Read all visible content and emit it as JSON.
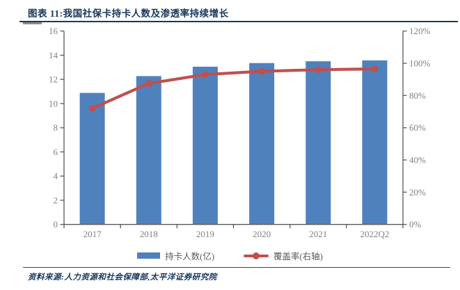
{
  "header": {
    "title": "图表 11:我国社保卡持卡人数及渗透率持续增长"
  },
  "footer": {
    "source": "资料来源:人力资源和社会保障部,太平洋证券研究院"
  },
  "colors": {
    "bar": "#4F81BD",
    "line": "#C0504D",
    "title_text": "#17375E",
    "axis": "#595959",
    "tick_label": "#808080"
  },
  "chart_data": {
    "type": "bar",
    "subtype": "bar+line dual axis",
    "categories": [
      "2017",
      "2018",
      "2019",
      "2020",
      "2021",
      "2022Q2"
    ],
    "series": [
      {
        "name": "持卡人数(亿)",
        "type": "bar",
        "axis": "left",
        "values": [
          10.88,
          12.27,
          13.05,
          13.35,
          13.5,
          13.57
        ]
      },
      {
        "name": "覆盖率(右轴)",
        "type": "line",
        "axis": "right",
        "values": [
          72,
          87.5,
          93,
          95,
          96,
          96.5
        ]
      }
    ],
    "title": "我国社保卡持卡人数及渗透率持续增长",
    "xlabel": "",
    "ylabel_left": "持卡人数(亿)",
    "ylabel_right": "覆盖率",
    "left_axis": {
      "min": 0,
      "max": 16,
      "tick_step": 2,
      "tick_labels": [
        "0",
        "2",
        "4",
        "6",
        "8",
        "10",
        "12",
        "14",
        "16"
      ]
    },
    "right_axis": {
      "min": 0,
      "max": 120,
      "tick_step": 20,
      "tick_labels": [
        "0%",
        "20%",
        "40%",
        "60%",
        "80%",
        "100%",
        "120%"
      ]
    },
    "grid": false,
    "legend_position": "bottom"
  }
}
